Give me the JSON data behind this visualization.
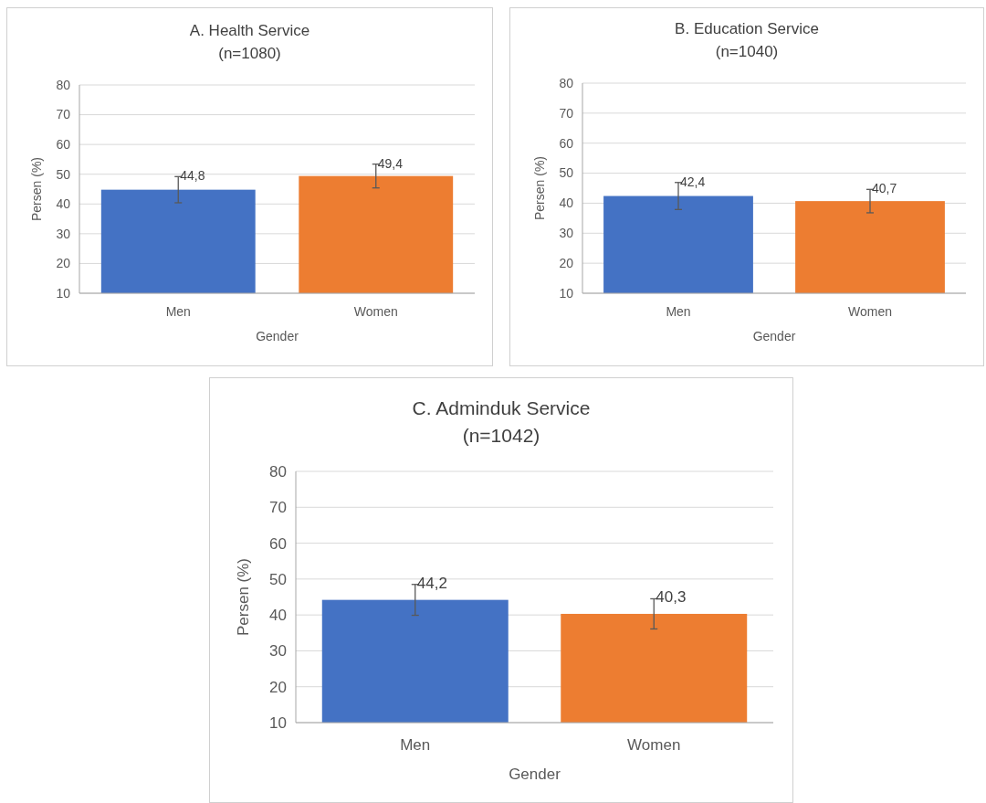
{
  "chart_data": [
    {
      "type": "bar",
      "title": "A. Health Service",
      "subtitle": "(n=1080)",
      "xlabel": "Gender",
      "ylabel": "Persen (%)",
      "categories": [
        "Men",
        "Women"
      ],
      "values": [
        44.8,
        49.4
      ],
      "colors": [
        "#4472c4",
        "#ed7d31"
      ],
      "errors": [
        4.4,
        4.0
      ],
      "value_labels": [
        "44,8",
        "49,4"
      ],
      "ylim": [
        10,
        80
      ],
      "yticks": [
        10,
        20,
        30,
        40,
        50,
        60,
        70,
        80
      ],
      "grid": "y"
    },
    {
      "type": "bar",
      "title": "B. Education Service",
      "subtitle": "(n=1040)",
      "xlabel": "Gender",
      "ylabel": "Persen (%)",
      "categories": [
        "Men",
        "Women"
      ],
      "values": [
        42.4,
        40.7
      ],
      "colors": [
        "#4472c4",
        "#ed7d31"
      ],
      "errors": [
        4.5,
        3.9
      ],
      "value_labels": [
        "42,4",
        "40,7"
      ],
      "ylim": [
        10,
        80
      ],
      "yticks": [
        10,
        20,
        30,
        40,
        50,
        60,
        70,
        80
      ],
      "grid": "y"
    },
    {
      "type": "bar",
      "title": "C. Adminduk Service",
      "subtitle": "(n=1042)",
      "xlabel": "Gender",
      "ylabel": "Persen (%)",
      "categories": [
        "Men",
        "Women"
      ],
      "values": [
        44.2,
        40.3
      ],
      "colors": [
        "#4472c4",
        "#ed7d31"
      ],
      "errors": [
        4.3,
        4.2
      ],
      "value_labels": [
        "44,2",
        "40,3"
      ],
      "ylim": [
        10,
        80
      ],
      "yticks": [
        10,
        20,
        30,
        40,
        50,
        60,
        70,
        80
      ],
      "grid": "y"
    }
  ]
}
